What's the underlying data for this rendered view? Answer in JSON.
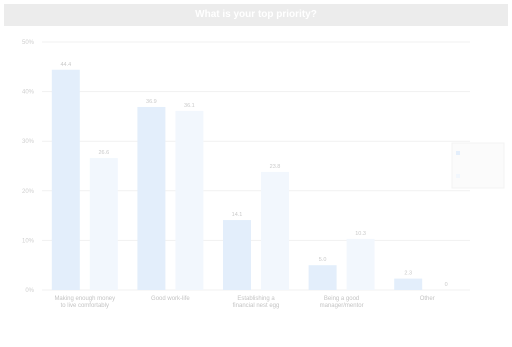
{
  "chart_data": {
    "type": "bar",
    "title": "What is your top priority?",
    "categories": [
      "Making enough money\nto live comfortably",
      "Good work-life",
      "Establishing a\nfinancial nest egg",
      "Being a good\nmanager/mentor",
      "Other"
    ],
    "series": [
      {
        "name": "",
        "values": [
          44.4,
          0,
          0,
          0,
          0
        ]
      },
      {
        "name": "",
        "values": [
          0,
          0,
          0,
          0,
          0
        ]
      }
    ],
    "values_a": [
      44.4,
      36.9,
      14.1,
      5.0,
      2.3
    ],
    "values_b": [
      26.6,
      36.1,
      23.8,
      10.3,
      0
    ],
    "data_labels_a": [
      "44.4",
      "36.9",
      "14.1",
      "5.0",
      "2.3"
    ],
    "data_labels_b": [
      "26.6",
      "36.1",
      "23.8",
      "10.3",
      "0"
    ],
    "ylim": [
      0,
      50
    ],
    "yticks": [
      "0%",
      "10%",
      "20%",
      "30%",
      "40%",
      "50%"
    ],
    "grid": true,
    "legend_placement": "right",
    "colors": {
      "series_a": "#e3eefb",
      "series_b": "#f2f7fd",
      "title_bar": "#ececec"
    }
  }
}
